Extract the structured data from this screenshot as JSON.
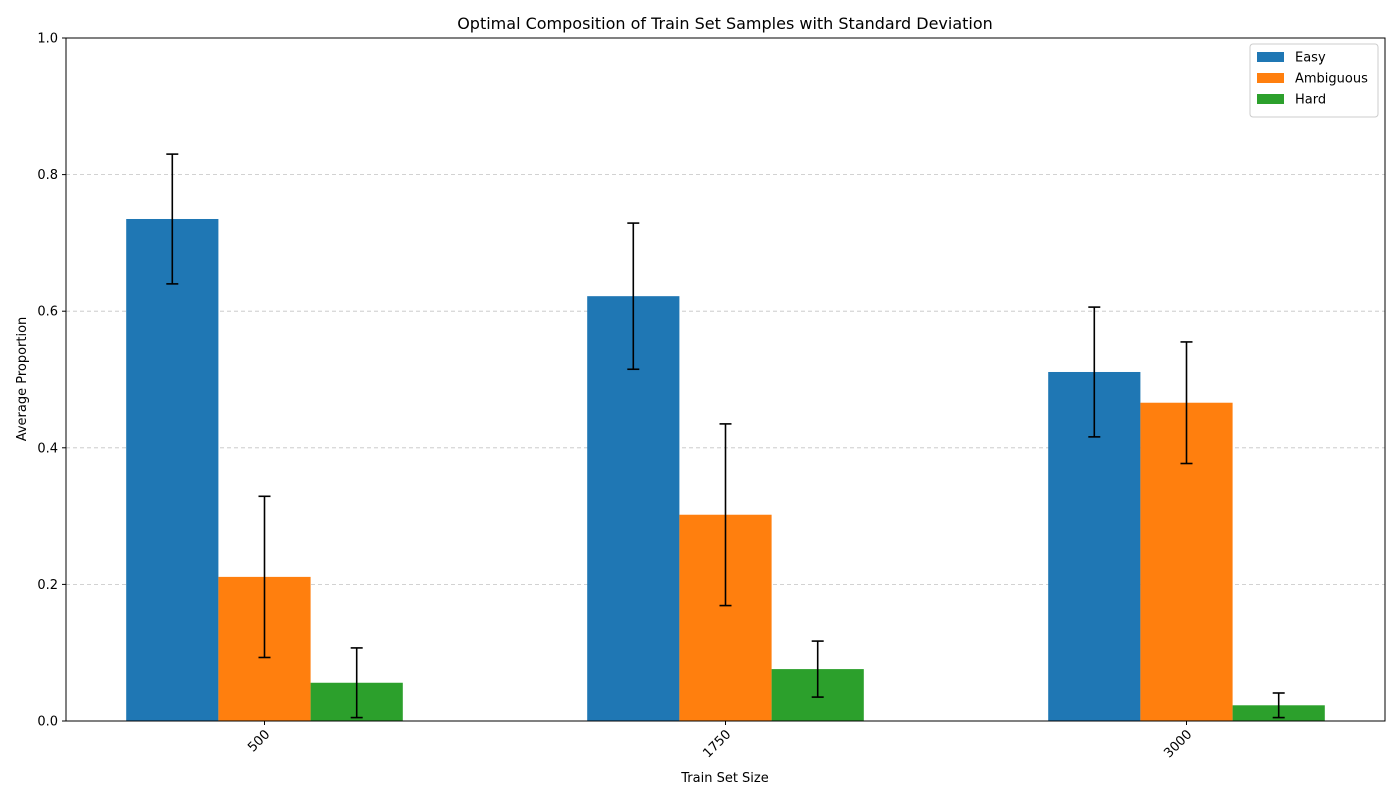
{
  "chart_data": {
    "type": "bar",
    "title": "Optimal Composition of Train Set Samples with Standard Deviation",
    "xlabel": "Train Set Size",
    "ylabel": "Average Proportion",
    "categories": [
      "500",
      "1750",
      "3000"
    ],
    "ylim": [
      0,
      1.0
    ],
    "yticks": [
      0.0,
      0.2,
      0.4,
      0.6,
      0.8,
      1.0
    ],
    "ytick_labels": [
      "0.0",
      "0.2",
      "0.4",
      "0.6",
      "0.8",
      "1.0"
    ],
    "xtick_rotation": 45,
    "grid": "y-dashed",
    "legend_position": "top-right",
    "series": [
      {
        "name": "Easy",
        "color": "#1f77b4",
        "values": [
          0.735,
          0.622,
          0.511
        ],
        "std": [
          0.095,
          0.107,
          0.095
        ]
      },
      {
        "name": "Ambiguous",
        "color": "#ff7f0e",
        "values": [
          0.211,
          0.302,
          0.466
        ],
        "std": [
          0.118,
          0.133,
          0.089
        ]
      },
      {
        "name": "Hard",
        "color": "#2ca02c",
        "values": [
          0.056,
          0.076,
          0.023
        ],
        "std": [
          0.051,
          0.041,
          0.018
        ]
      }
    ]
  }
}
